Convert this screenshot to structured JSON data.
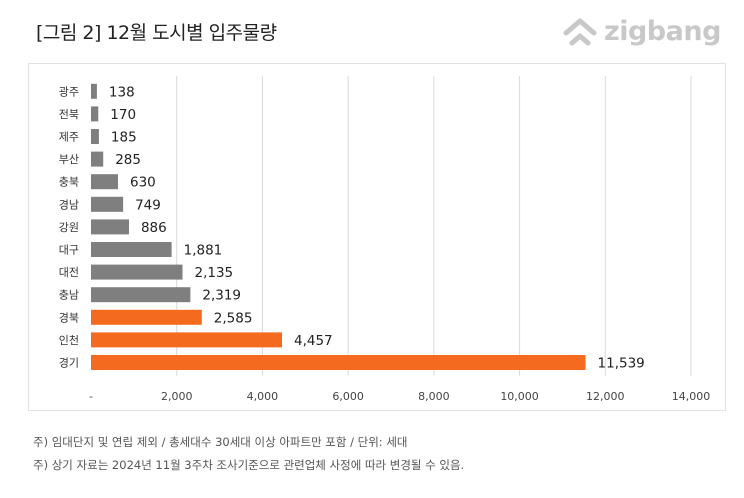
{
  "title": "[그림 2] 12월 도시별 입주물량",
  "logo": {
    "text": "zigbang",
    "icon": "zigbang-house-logo-icon"
  },
  "colors": {
    "highlight": "#f46b20",
    "normal": "#7f7f7f",
    "grid": "#d9d9d9",
    "logo": "#c8c8c8"
  },
  "chart_data": {
    "type": "bar",
    "orientation": "horizontal",
    "categories": [
      "광주",
      "전북",
      "제주",
      "부산",
      "충북",
      "경남",
      "강원",
      "대구",
      "대전",
      "충남",
      "경북",
      "인천",
      "경기"
    ],
    "values": [
      138,
      170,
      185,
      285,
      630,
      749,
      886,
      1881,
      2135,
      2319,
      2585,
      4457,
      11539
    ],
    "value_labels": [
      "138",
      "170",
      "185",
      "285",
      "630",
      "749",
      "886",
      "1,881",
      "2,135",
      "2,319",
      "2,585",
      "4,457",
      "11,539"
    ],
    "highlighted": [
      "경북",
      "인천",
      "경기"
    ],
    "xlim": [
      0,
      14000
    ],
    "x_ticks": [
      0,
      2000,
      4000,
      6000,
      8000,
      10000,
      12000,
      14000
    ],
    "x_tick_labels": [
      "-",
      "2,000",
      "4,000",
      "6,000",
      "8,000",
      "10,000",
      "12,000",
      "14,000"
    ],
    "grid": true,
    "legend": "none"
  },
  "footnotes": [
    "주) 임대단지 및 연립 제외 / 총세대수 30세대 이상 아파트만 포함 / 단위: 세대",
    "주) 상기 자료는 2024년 11월 3주차 조사기준으로 관련업체 사정에 따라 변경될 수 있음."
  ]
}
